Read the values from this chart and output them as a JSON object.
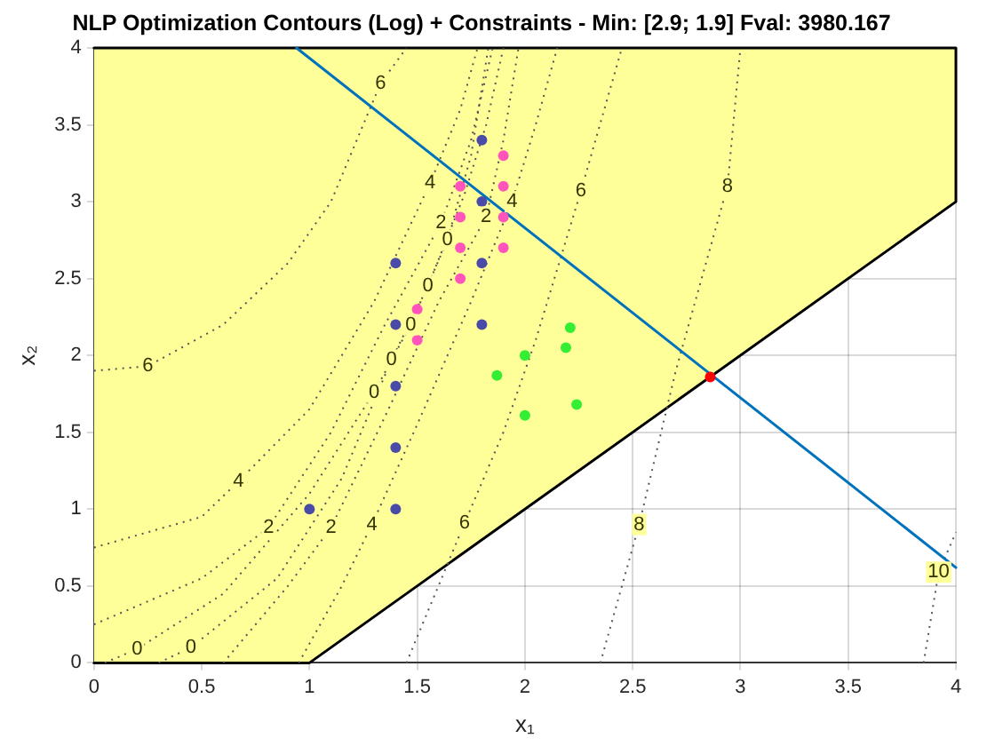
{
  "chart_data": {
    "type": "scatter",
    "title": "NLP Optimization Contours (Log) + Constraints - Min: [2.9; 1.9] Fval: 3980.167",
    "xlabel": "x₁",
    "ylabel": "x₂",
    "xlim": [
      0,
      4
    ],
    "ylim": [
      0,
      4
    ],
    "xticks": [
      0,
      0.5,
      1,
      1.5,
      2,
      2.5,
      3,
      3.5,
      4
    ],
    "yticks": [
      0,
      0.5,
      1,
      1.5,
      2,
      2.5,
      3,
      3.5,
      4
    ],
    "grid": true,
    "legend": false,
    "series": [
      {
        "type": "scatter",
        "color": "#ff0000",
        "marker": "circle",
        "x": [
          2.86
        ],
        "values": [
          1.86
        ]
      },
      {
        "type": "scatter",
        "color": "#33ee33",
        "marker": "circle",
        "x": [
          2.0,
          1.87,
          2.0,
          2.21,
          2.19,
          2.24
        ],
        "values": [
          2.0,
          1.87,
          1.61,
          2.18,
          2.05,
          1.68
        ]
      },
      {
        "type": "scatter",
        "color": "#ff55bb",
        "marker": "circle",
        "x": [
          1.9,
          1.7,
          1.9,
          1.7,
          1.9,
          1.7,
          1.9,
          1.7,
          1.5,
          1.5
        ],
        "values": [
          3.3,
          3.1,
          3.1,
          2.9,
          2.9,
          2.7,
          2.7,
          2.5,
          2.3,
          2.1
        ]
      },
      {
        "type": "scatter",
        "color": "#4a4aa8",
        "marker": "circle",
        "x": [
          1.8,
          1.8,
          1.4,
          1.8,
          1.4,
          1.8,
          1.4,
          1.4,
          1,
          1.4
        ],
        "values": [
          3.4,
          3.0,
          2.6,
          2.6,
          2.2,
          2.2,
          1.8,
          1.4,
          1,
          1
        ]
      },
      {
        "type": "line",
        "color": "#0072bd",
        "line_style": "solid",
        "marker": "none",
        "x": [
          0.94,
          4
        ],
        "values": [
          4,
          0.62
        ]
      },
      {
        "type": "line",
        "color": "#555555",
        "line_style": "dotted",
        "marker": "none",
        "x": [
          0.05,
          0.2,
          0.6,
          1.0,
          1.3,
          1.47,
          1.64,
          1.75,
          1.83
        ],
        "values": [
          0,
          0.09,
          0.45,
          1.1,
          1.76,
          2.2,
          2.75,
          3.3,
          4
        ]
      },
      {
        "type": "line",
        "color": "#555555",
        "line_style": "dotted",
        "marker": "none",
        "x": [
          0.3,
          0.45,
          0.85,
          1.15,
          1.38,
          1.55,
          1.72,
          1.82,
          1.9
        ],
        "values": [
          0,
          0.1,
          0.55,
          1.2,
          1.97,
          2.45,
          3.05,
          3.5,
          4
        ]
      },
      {
        "type": "line",
        "color": "#555555",
        "line_style": "dotted",
        "marker": "none",
        "x": [
          0,
          0.5,
          0.81,
          1.1,
          1.35,
          1.61,
          1.75,
          1.85
        ],
        "values": [
          0.25,
          0.55,
          0.88,
          1.5,
          2.2,
          2.86,
          3.4,
          4
        ]
      },
      {
        "type": "line",
        "color": "#555555",
        "line_style": "dotted",
        "marker": "none",
        "x": [
          0.6,
          0.9,
          1.1,
          1.35,
          1.6,
          1.82,
          1.9,
          1.97
        ],
        "values": [
          0,
          0.5,
          0.88,
          1.6,
          2.35,
          2.9,
          3.4,
          4
        ]
      },
      {
        "type": "line",
        "color": "#555555",
        "line_style": "dotted",
        "marker": "none",
        "x": [
          0,
          0.5,
          0.67,
          1.0,
          1.3,
          1.56,
          1.7,
          1.78
        ],
        "values": [
          0.75,
          0.95,
          1.18,
          1.65,
          2.35,
          3.12,
          3.6,
          4
        ]
      },
      {
        "type": "line",
        "color": "#555555",
        "line_style": "dotted",
        "marker": "none",
        "x": [
          0.95,
          1.15,
          1.29,
          1.5,
          1.75,
          1.94,
          2.05,
          2.15
        ],
        "values": [
          0,
          0.5,
          0.9,
          1.55,
          2.35,
          3.0,
          3.5,
          4
        ]
      },
      {
        "type": "line",
        "color": "#555555",
        "line_style": "dotted",
        "marker": "none",
        "x": [
          0,
          0.25,
          0.6,
          0.9,
          1.1,
          1.33,
          1.45
        ],
        "values": [
          1.9,
          1.93,
          2.2,
          2.6,
          3.0,
          3.77,
          4
        ]
      },
      {
        "type": "line",
        "color": "#555555",
        "line_style": "dotted",
        "marker": "none",
        "x": [
          1.45,
          1.72,
          1.9,
          2.05,
          2.26,
          2.45
        ],
        "values": [
          0,
          0.91,
          1.5,
          2.1,
          3.07,
          4
        ]
      },
      {
        "type": "line",
        "color": "#555555",
        "line_style": "dotted",
        "marker": "none",
        "x": [
          2.35,
          2.53,
          2.7,
          2.94,
          3.0
        ],
        "values": [
          0,
          0.9,
          1.9,
          3.1,
          4
        ]
      },
      {
        "type": "line",
        "color": "#555555",
        "line_style": "dotted",
        "marker": "none",
        "x": [
          3.85,
          3.92,
          4
        ],
        "values": [
          0,
          0.59,
          0.85
        ]
      },
      {
        "type": "area",
        "color": "#ffff99",
        "x": [
          0,
          1,
          4,
          4,
          0
        ],
        "values": [
          0,
          0,
          3,
          4,
          4
        ],
        "marker": "none"
      }
    ],
    "annotations": [
      {
        "text": "6",
        "x": 0.25,
        "y": 1.93
      },
      {
        "text": "6",
        "x": 1.33,
        "y": 3.77
      },
      {
        "text": "6",
        "x": 1.72,
        "y": 0.91
      },
      {
        "text": "6",
        "x": 2.26,
        "y": 3.07
      },
      {
        "text": "4",
        "x": 0.67,
        "y": 1.18
      },
      {
        "text": "4",
        "x": 1.56,
        "y": 3.12
      },
      {
        "text": "4",
        "x": 1.29,
        "y": 0.9
      },
      {
        "text": "4",
        "x": 1.94,
        "y": 3.0
      },
      {
        "text": "2",
        "x": 0.81,
        "y": 0.88
      },
      {
        "text": "2",
        "x": 1.1,
        "y": 0.88
      },
      {
        "text": "2",
        "x": 1.61,
        "y": 2.86
      },
      {
        "text": "2",
        "x": 1.82,
        "y": 2.9
      },
      {
        "text": "0",
        "x": 0.2,
        "y": 0.09
      },
      {
        "text": "0",
        "x": 0.45,
        "y": 0.1
      },
      {
        "text": "0",
        "x": 1.3,
        "y": 1.76
      },
      {
        "text": "0",
        "x": 1.38,
        "y": 1.97
      },
      {
        "text": "0",
        "x": 1.47,
        "y": 2.2
      },
      {
        "text": "0",
        "x": 1.55,
        "y": 2.45
      },
      {
        "text": "0",
        "x": 1.64,
        "y": 2.75
      },
      {
        "text": "8",
        "x": 2.53,
        "y": 0.9
      },
      {
        "text": "8",
        "x": 2.94,
        "y": 3.1
      },
      {
        "text": "10",
        "x": 3.92,
        "y": 0.59
      }
    ]
  }
}
